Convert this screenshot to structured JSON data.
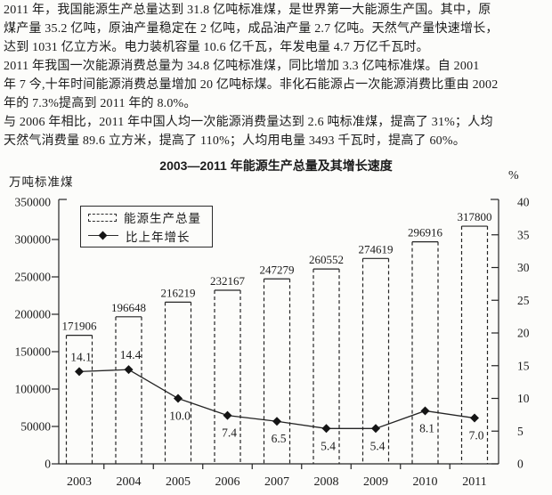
{
  "page": {
    "background": "#fcfcfa",
    "ink_color": "#242424"
  },
  "text_lines": [
    "2011 年，我国能源生产总量达到 31.8 亿吨标准煤，是世界第一大能源生产国。其中，原",
    "煤产量 35.2 亿吨，原油产量稳定在 2 亿吨，成品油产量 2.7 亿吨。天然气产量快速增长，",
    "达到 1031 亿立方米。电力装机容量 10.6 亿千瓦，年发电量 4.7 万亿千瓦时。",
    "2011 年我国一次能源消费总量为 34.8 亿吨标准煤，同比增加 3.3 亿吨标准煤。自 2001",
    "年 7 今,十年时间能源消费总量增加 20 亿吨标煤。非化石能源占一次能源消费比重由 2002",
    "年的 7.3%提高到 2011 年的 8.0%。",
    "与 2006 年相比，2011 年中国人均一次能源消费量达到 2.6 吨标准煤，提高了 31%；人均",
    "天然气消费量 89.6 立方米，提高了 110%；人均用电量 3493 千瓦时，提高了 60%。"
  ],
  "chart_data": {
    "type": "bar+line",
    "title": "2003—2011 年能源生产总量及其增长速度",
    "categories": [
      "2003",
      "2004",
      "2005",
      "2006",
      "2007",
      "2008",
      "2009",
      "2010",
      "2011"
    ],
    "series": [
      {
        "name": "能源生产总量",
        "type": "bar",
        "axis": "left",
        "values": [
          171906,
          196648,
          216219,
          232167,
          247279,
          260552,
          274619,
          296916,
          317800
        ]
      },
      {
        "name": "比上年增长",
        "type": "line",
        "axis": "right",
        "values": [
          14.1,
          14.4,
          10.0,
          7.4,
          6.5,
          5.4,
          5.4,
          8.1,
          7.0
        ]
      }
    ],
    "left_axis": {
      "label": "万吨标准煤",
      "min": 0,
      "max": 350000,
      "tick_step": 50000
    },
    "right_axis": {
      "label": "%",
      "min": 0,
      "max": 40,
      "tick_step": 5
    },
    "legend": {
      "position": "inside-top-left"
    },
    "grid": false,
    "bar_style": {
      "fill": "none",
      "edge": "dashed-sides-solid-top"
    },
    "marker": "filled-diamond"
  }
}
